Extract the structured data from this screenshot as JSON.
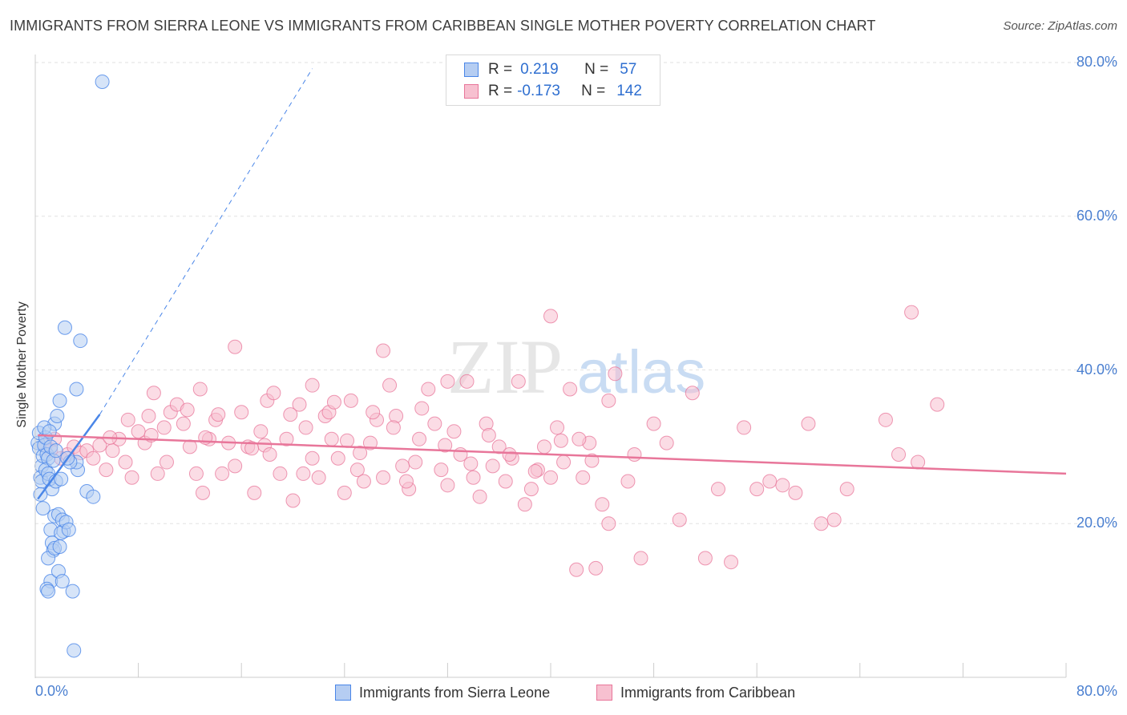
{
  "title": "IMMIGRANTS FROM SIERRA LEONE VS IMMIGRANTS FROM CARIBBEAN SINGLE MOTHER POVERTY CORRELATION CHART",
  "source": "Source: ZipAtlas.com",
  "watermark": {
    "zip": "ZIP",
    "atlas": "atlas"
  },
  "legend": {
    "r_label": "R =",
    "n_label": "N =",
    "blue": {
      "r": "0.219",
      "n": "57"
    },
    "pink": {
      "r": "-0.173",
      "n": "142"
    }
  },
  "colors": {
    "blue": "#4a86e8",
    "blue_fill": "#b5cdf2",
    "pink": "#e8769a",
    "pink_fill": "#f7c0d0",
    "axis_text": "#4a7fd0"
  },
  "chart_data": {
    "type": "scatter",
    "xlabel": "",
    "ylabel": "Single Mother Poverty",
    "xlim": [
      0,
      80
    ],
    "ylim": [
      0,
      80
    ],
    "x_tick_labels": [
      "0.0%",
      "80.0%"
    ],
    "y_tick_labels": [
      "20.0%",
      "40.0%",
      "60.0%",
      "80.0%"
    ],
    "y_ticks": [
      20,
      40,
      60,
      80
    ],
    "series": [
      {
        "name": "Immigrants from Sierra Leone",
        "color": "#4a86e8",
        "trend": {
          "x": [
            0.2,
            5.0
          ],
          "y": [
            23.2,
            34.2
          ]
        },
        "trend_ext": {
          "x": [
            5.0,
            21.5
          ],
          "y": [
            34.2,
            79.2
          ]
        },
        "points": [
          [
            0.2,
            30.5
          ],
          [
            0.3,
            29.8
          ],
          [
            0.3,
            31.8
          ],
          [
            0.5,
            27.5
          ],
          [
            0.4,
            26.0
          ],
          [
            0.6,
            28.8
          ],
          [
            0.7,
            30.2
          ],
          [
            0.5,
            25.5
          ],
          [
            0.8,
            31.2
          ],
          [
            0.9,
            29.0
          ],
          [
            1.0,
            28.5
          ],
          [
            0.8,
            27.0
          ],
          [
            1.2,
            30.0
          ],
          [
            1.0,
            26.5
          ],
          [
            1.3,
            24.5
          ],
          [
            1.1,
            25.8
          ],
          [
            0.6,
            22.0
          ],
          [
            1.4,
            28.2
          ],
          [
            1.5,
            33.0
          ],
          [
            1.7,
            34.0
          ],
          [
            1.9,
            36.0
          ],
          [
            1.6,
            25.5
          ],
          [
            2.0,
            25.8
          ],
          [
            1.5,
            21.0
          ],
          [
            1.8,
            21.2
          ],
          [
            2.1,
            20.5
          ],
          [
            1.2,
            19.2
          ],
          [
            2.2,
            19.0
          ],
          [
            2.0,
            18.8
          ],
          [
            2.4,
            20.2
          ],
          [
            2.6,
            19.2
          ],
          [
            1.3,
            17.5
          ],
          [
            1.4,
            16.5
          ],
          [
            1.0,
            15.5
          ],
          [
            1.5,
            16.8
          ],
          [
            1.9,
            17.0
          ],
          [
            1.2,
            12.5
          ],
          [
            1.8,
            13.8
          ],
          [
            2.1,
            12.5
          ],
          [
            0.9,
            11.5
          ],
          [
            1.0,
            11.2
          ],
          [
            2.9,
            11.2
          ],
          [
            2.3,
            45.5
          ],
          [
            3.5,
            43.8
          ],
          [
            3.2,
            37.5
          ],
          [
            3.3,
            27.0
          ],
          [
            3.2,
            28.0
          ],
          [
            4.0,
            24.2
          ],
          [
            4.5,
            23.5
          ],
          [
            0.7,
            32.5
          ],
          [
            1.1,
            32.0
          ],
          [
            2.7,
            28.0
          ],
          [
            5.2,
            77.5
          ],
          [
            3.0,
            3.5
          ],
          [
            0.4,
            23.8
          ],
          [
            1.6,
            29.5
          ],
          [
            2.5,
            28.5
          ]
        ]
      },
      {
        "name": "Immigrants from Caribbean",
        "color": "#e8769a",
        "trend": {
          "x": [
            0.2,
            80.0
          ],
          "y": [
            31.5,
            26.5
          ]
        },
        "points": [
          [
            0.8,
            30.2
          ],
          [
            1.2,
            29.5
          ],
          [
            1.5,
            31.0
          ],
          [
            2.0,
            28.5
          ],
          [
            2.5,
            29.0
          ],
          [
            3.0,
            30.0
          ],
          [
            3.5,
            29.2
          ],
          [
            4.0,
            29.5
          ],
          [
            4.5,
            28.5
          ],
          [
            5.0,
            30.2
          ],
          [
            5.5,
            27.0
          ],
          [
            6.0,
            29.5
          ],
          [
            6.5,
            31.0
          ],
          [
            7.0,
            28.0
          ],
          [
            7.5,
            26.0
          ],
          [
            8.0,
            32.0
          ],
          [
            8.5,
            30.5
          ],
          [
            9.0,
            31.5
          ],
          [
            9.5,
            26.5
          ],
          [
            10.0,
            32.5
          ],
          [
            10.5,
            34.5
          ],
          [
            11.0,
            35.5
          ],
          [
            11.5,
            33.0
          ],
          [
            12.0,
            30.0
          ],
          [
            12.5,
            26.5
          ],
          [
            13.0,
            24.0
          ],
          [
            13.5,
            31.0
          ],
          [
            14.0,
            33.5
          ],
          [
            14.5,
            26.5
          ],
          [
            15.0,
            30.5
          ],
          [
            15.5,
            27.5
          ],
          [
            16.0,
            34.5
          ],
          [
            16.5,
            30.0
          ],
          [
            17.0,
            24.0
          ],
          [
            17.5,
            32.0
          ],
          [
            18.0,
            36.0
          ],
          [
            18.5,
            37.0
          ],
          [
            19.0,
            26.5
          ],
          [
            19.5,
            31.0
          ],
          [
            20.0,
            23.0
          ],
          [
            20.5,
            35.5
          ],
          [
            21.0,
            32.5
          ],
          [
            21.5,
            28.5
          ],
          [
            22.0,
            26.0
          ],
          [
            22.5,
            34.0
          ],
          [
            23.0,
            31.0
          ],
          [
            23.5,
            28.5
          ],
          [
            24.0,
            24.0
          ],
          [
            24.5,
            36.0
          ],
          [
            25.0,
            27.0
          ],
          [
            25.5,
            25.5
          ],
          [
            26.0,
            30.5
          ],
          [
            26.5,
            33.5
          ],
          [
            27.0,
            26.0
          ],
          [
            27.5,
            38.0
          ],
          [
            28.0,
            34.0
          ],
          [
            28.5,
            27.5
          ],
          [
            29.0,
            24.5
          ],
          [
            29.5,
            28.0
          ],
          [
            30.0,
            35.0
          ],
          [
            30.5,
            37.5
          ],
          [
            31.0,
            33.0
          ],
          [
            31.5,
            27.0
          ],
          [
            32.0,
            25.0
          ],
          [
            32.5,
            32.0
          ],
          [
            33.0,
            29.0
          ],
          [
            33.5,
            38.5
          ],
          [
            34.0,
            26.0
          ],
          [
            34.5,
            23.5
          ],
          [
            35.0,
            33.0
          ],
          [
            35.5,
            27.5
          ],
          [
            36.0,
            30.0
          ],
          [
            36.5,
            25.5
          ],
          [
            37.0,
            28.5
          ],
          [
            37.5,
            38.5
          ],
          [
            38.0,
            22.5
          ],
          [
            38.5,
            24.5
          ],
          [
            39.0,
            27.0
          ],
          [
            39.5,
            30.0
          ],
          [
            40.0,
            26.0
          ],
          [
            40.5,
            32.5
          ],
          [
            41.0,
            28.0
          ],
          [
            41.5,
            37.5
          ],
          [
            42.0,
            14.0
          ],
          [
            42.5,
            26.0
          ],
          [
            43.0,
            30.5
          ],
          [
            43.5,
            14.2
          ],
          [
            44.0,
            22.5
          ],
          [
            44.5,
            20.0
          ],
          [
            45.0,
            39.5
          ],
          [
            46.0,
            25.5
          ],
          [
            46.5,
            29.0
          ],
          [
            47.0,
            15.5
          ],
          [
            48.0,
            33.0
          ],
          [
            49.0,
            30.5
          ],
          [
            50.0,
            20.5
          ],
          [
            51.0,
            37.0
          ],
          [
            52.0,
            15.5
          ],
          [
            53.0,
            24.5
          ],
          [
            54.0,
            15.0
          ],
          [
            55.0,
            32.5
          ],
          [
            56.0,
            24.5
          ],
          [
            57.0,
            25.5
          ],
          [
            58.0,
            25.0
          ],
          [
            59.0,
            24.0
          ],
          [
            60.0,
            33.0
          ],
          [
            61.0,
            20.0
          ],
          [
            62.0,
            20.5
          ],
          [
            63.0,
            24.5
          ],
          [
            66.0,
            33.5
          ],
          [
            67.0,
            29.0
          ],
          [
            68.0,
            47.5
          ],
          [
            68.5,
            28.0
          ],
          [
            70.0,
            35.5
          ],
          [
            15.5,
            43.0
          ],
          [
            21.5,
            38.0
          ],
          [
            27.0,
            42.5
          ],
          [
            32.0,
            38.5
          ],
          [
            40.0,
            47.0
          ],
          [
            44.5,
            36.0
          ],
          [
            10.2,
            28.0
          ],
          [
            11.8,
            34.8
          ],
          [
            14.2,
            34.2
          ],
          [
            17.8,
            30.2
          ],
          [
            19.8,
            34.2
          ],
          [
            22.8,
            34.5
          ],
          [
            24.2,
            30.8
          ],
          [
            25.2,
            29.2
          ],
          [
            27.8,
            32.5
          ],
          [
            29.8,
            31.0
          ],
          [
            31.8,
            30.2
          ],
          [
            33.8,
            27.8
          ],
          [
            35.2,
            31.5
          ],
          [
            36.8,
            29.0
          ],
          [
            38.8,
            26.8
          ],
          [
            40.8,
            30.8
          ],
          [
            42.2,
            31.0
          ],
          [
            43.2,
            28.2
          ],
          [
            5.8,
            31.2
          ],
          [
            7.2,
            33.5
          ],
          [
            8.8,
            34.0
          ],
          [
            9.2,
            37.0
          ],
          [
            12.8,
            37.5
          ],
          [
            13.2,
            31.2
          ],
          [
            16.8,
            29.8
          ],
          [
            18.2,
            29.0
          ],
          [
            20.8,
            26.5
          ],
          [
            23.2,
            35.8
          ],
          [
            26.2,
            34.5
          ],
          [
            28.8,
            25.5
          ]
        ]
      }
    ]
  },
  "bottom_legend": {
    "blue_label": "Immigrants from Sierra Leone",
    "pink_label": "Immigrants from Caribbean"
  }
}
